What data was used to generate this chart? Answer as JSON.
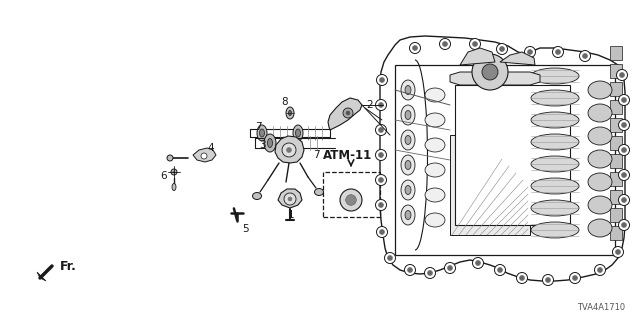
{
  "diagram_code": "TVA4A1710",
  "atm_label": "ATM-11",
  "fr_label": "Fr.",
  "bg_color": "#ffffff",
  "line_color": "#1a1a1a",
  "label_fontsize": 7.5,
  "atm_fontsize": 8.5,
  "fr_fontsize": 9
}
